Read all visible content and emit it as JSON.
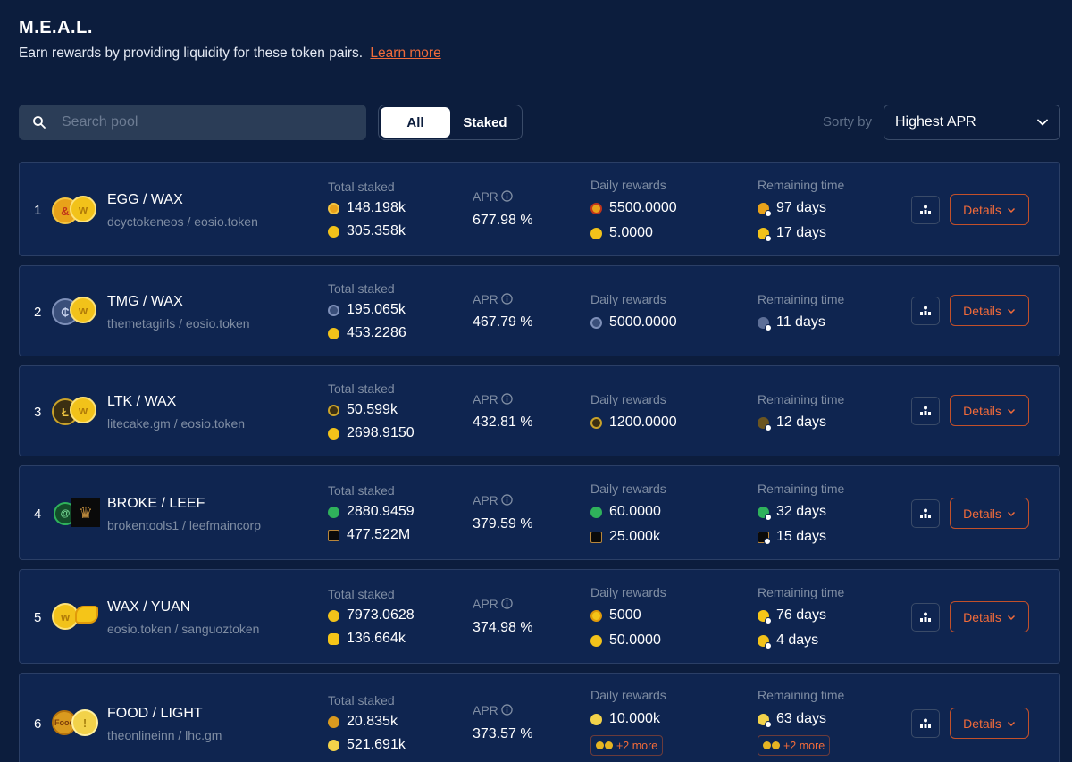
{
  "header": {
    "title": "M.E.A.L.",
    "subtitle": "Earn rewards by providing liquidity for these token pairs.",
    "learn_more": "Learn more"
  },
  "toolbar": {
    "search_placeholder": "Search pool",
    "filter_all": "All",
    "filter_staked": "Staked",
    "sortby_label": "Sorty by",
    "sort_value": "Highest APR"
  },
  "labels": {
    "total_staked": "Total staked",
    "apr": "APR",
    "daily_rewards": "Daily rewards",
    "remaining_time": "Remaining time",
    "details": "Details"
  },
  "colors": {
    "background": "#0c1d3d",
    "row_bg": "#0f2550",
    "accent": "#f26b3a"
  },
  "pools": [
    {
      "rank": "1",
      "pair": "EGG / WAX",
      "contract": "dcyctokeneos / eosio.token",
      "staked": [
        "148.198k",
        "305.358k"
      ],
      "apr": "677.98 %",
      "rewards": [
        "5500.0000",
        "5.0000"
      ],
      "remaining": [
        "97 days",
        "17 days"
      ],
      "more": ""
    },
    {
      "rank": "2",
      "pair": "TMG / WAX",
      "contract": "themetagirls / eosio.token",
      "staked": [
        "195.065k",
        "453.2286"
      ],
      "apr": "467.79 %",
      "rewards": [
        "5000.0000"
      ],
      "remaining": [
        "11 days"
      ],
      "more": ""
    },
    {
      "rank": "3",
      "pair": "LTK / WAX",
      "contract": "litecake.gm / eosio.token",
      "staked": [
        "50.599k",
        "2698.9150"
      ],
      "apr": "432.81 %",
      "rewards": [
        "1200.0000"
      ],
      "remaining": [
        "12 days"
      ],
      "more": ""
    },
    {
      "rank": "4",
      "pair": "BROKE / LEEF",
      "contract": "brokentools1 / leefmaincorp",
      "staked": [
        "2880.9459",
        "477.522M"
      ],
      "apr": "379.59 %",
      "rewards": [
        "60.0000",
        "25.000k"
      ],
      "remaining": [
        "32 days",
        "15 days"
      ],
      "more": ""
    },
    {
      "rank": "5",
      "pair": "WAX / YUAN",
      "contract": "eosio.token / sanguoztoken",
      "staked": [
        "7973.0628",
        "136.664k"
      ],
      "apr": "374.98 %",
      "rewards": [
        "5000",
        "50.0000"
      ],
      "remaining": [
        "76 days",
        "4 days"
      ],
      "more": ""
    },
    {
      "rank": "6",
      "pair": "FOOD / LIGHT",
      "contract": "theonlineinn / lhc.gm",
      "staked": [
        "20.835k",
        "521.691k"
      ],
      "apr": "373.57 %",
      "rewards": [
        "10.000k"
      ],
      "remaining": [
        "63 days"
      ],
      "more": "+2 more"
    }
  ]
}
